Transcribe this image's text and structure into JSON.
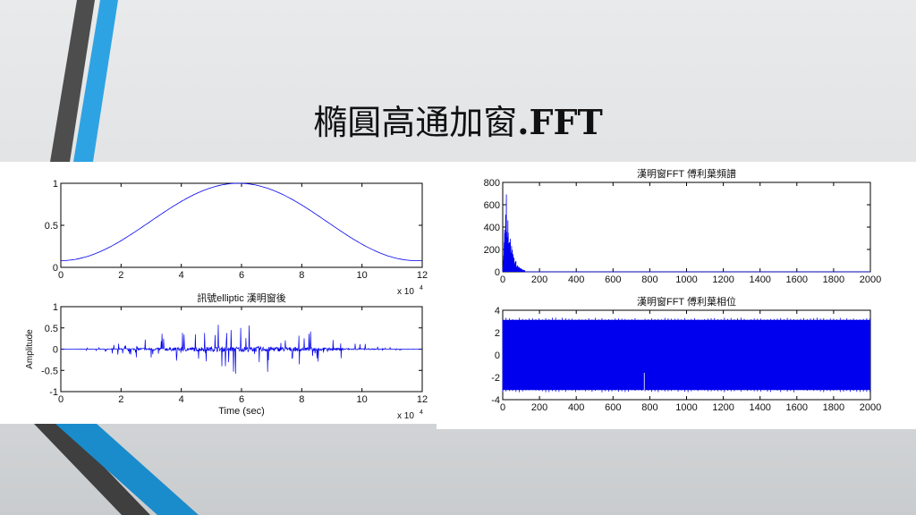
{
  "slide": {
    "title_cjk": "橢圓高通加窗",
    "title_latin": ".FFT"
  },
  "colors": {
    "signal": "#0000ee",
    "accent_blue": "#2b9fe0",
    "stripe_gray": "#555555"
  },
  "chart_data": [
    {
      "type": "line",
      "title": "",
      "xlabel": "",
      "ylabel": "",
      "xlim": [
        0,
        120000
      ],
      "ylim": [
        0,
        1
      ],
      "xticks": [
        "0",
        "2",
        "4",
        "6",
        "8",
        "10",
        "12"
      ],
      "yticks": [
        "0",
        "0.5",
        "1"
      ],
      "x_multiplier": "x 10",
      "x_multiplier_exp": "4",
      "series": [
        {
          "shape": "hann window (half-cosine)",
          "x_start": 0,
          "x_end": 120000,
          "y_start": 0.08,
          "y_peak": 1.0,
          "x_peak": 59000,
          "y_end": 0.08
        }
      ]
    },
    {
      "type": "line",
      "title": "訊號elliptic 漢明窗後",
      "xlabel": "Time (sec)",
      "ylabel": "Amplitude",
      "xlim": [
        0,
        120000
      ],
      "ylim": [
        -1,
        1
      ],
      "xticks": [
        "0",
        "2",
        "4",
        "6",
        "8",
        "10",
        "12"
      ],
      "yticks": [
        "-1",
        "-0.5",
        "0",
        "0.5",
        "1"
      ],
      "x_multiplier": "x 10",
      "x_multiplier_exp": "4",
      "series": [
        {
          "shape": "windowed noisy signal",
          "max_abs_amplitude": 0.62
        }
      ]
    },
    {
      "type": "line",
      "title": "漢明窗FFT 傅利葉頻譜",
      "xlabel": "",
      "ylabel": "",
      "xlim": [
        0,
        2000
      ],
      "ylim": [
        0,
        800
      ],
      "xticks": [
        "0",
        "200",
        "400",
        "600",
        "800",
        "1000",
        "1200",
        "1400",
        "1600",
        "1800",
        "2000"
      ],
      "yticks": [
        "0",
        "200",
        "400",
        "600",
        "800"
      ],
      "series": [
        {
          "shape": "magnitude spectrum",
          "peak_x": 20,
          "peak_y": 770,
          "decays_by_x": 120
        }
      ]
    },
    {
      "type": "line",
      "title": "漢明窗FFT 傅利葉相位",
      "xlabel": "",
      "ylabel": "",
      "xlim": [
        0,
        2000
      ],
      "ylim": [
        -4,
        4
      ],
      "xticks": [
        "0",
        "200",
        "400",
        "600",
        "800",
        "1000",
        "1200",
        "1400",
        "1600",
        "1800",
        "2000"
      ],
      "yticks": [
        "-4",
        "-2",
        "0",
        "2",
        "4"
      ],
      "series": [
        {
          "shape": "phase spectrum",
          "range": [
            -3.14,
            3.14
          ]
        }
      ]
    }
  ]
}
